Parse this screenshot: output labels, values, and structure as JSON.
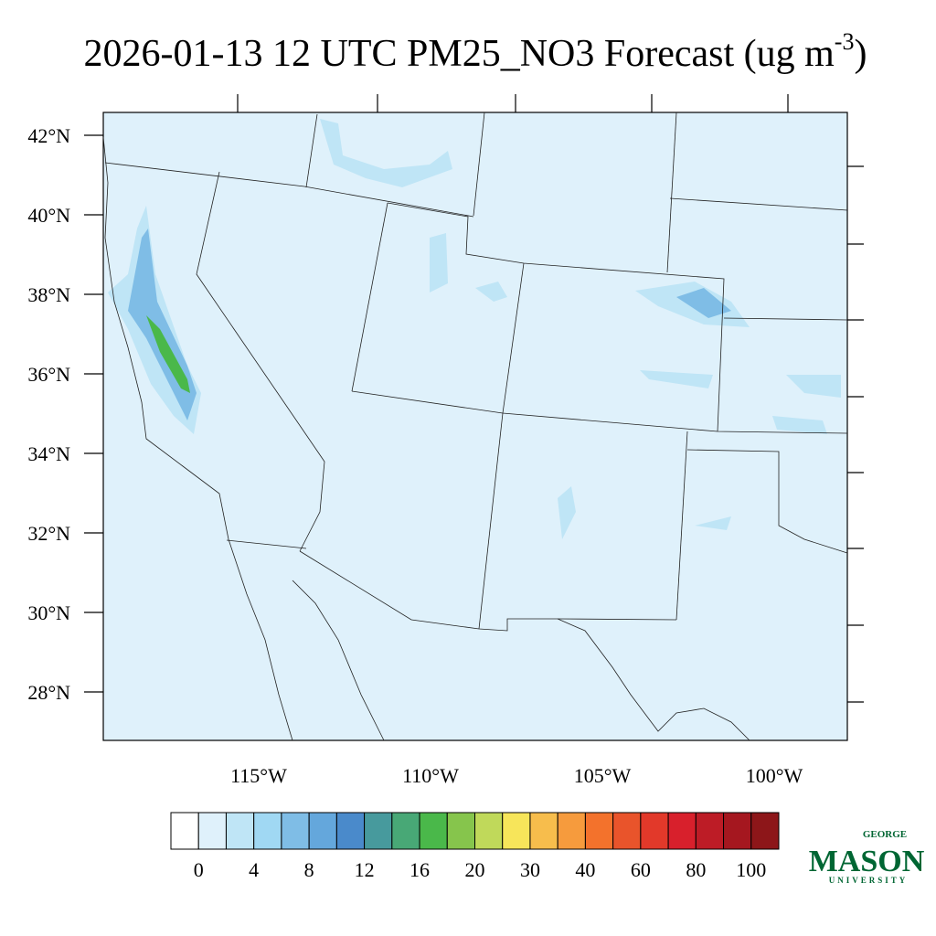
{
  "title": {
    "main": "2026-01-13 12 UTC PM25_NO3 Forecast (ug m",
    "superscript": "-3",
    "close": ")"
  },
  "lat_labels": [
    "42°N",
    "40°N",
    "38°N",
    "36°N",
    "34°N",
    "32°N",
    "30°N",
    "28°N"
  ],
  "lon_labels": [
    "115°W",
    "110°W",
    "105°W",
    "100°W"
  ],
  "colorbar": {
    "colors": [
      "#ffffff",
      "#dff1fb",
      "#bfe5f6",
      "#a0d8f3",
      "#7fbde6",
      "#64a7dc",
      "#4a8acb",
      "#479a9d",
      "#48a876",
      "#4ab84a",
      "#86c54c",
      "#c0d95a",
      "#f7e55a",
      "#f7bd4c",
      "#f69b3d",
      "#f3722c",
      "#e9542b",
      "#e2392a",
      "#d8202c",
      "#bd1c26",
      "#a5171f",
      "#8d1619"
    ],
    "labels": [
      0,
      4,
      8,
      12,
      16,
      20,
      30,
      40,
      60,
      80,
      100
    ]
  },
  "logo": {
    "top": "GEORGE",
    "name": "MASON",
    "bottom": "UNIVERSITY"
  }
}
